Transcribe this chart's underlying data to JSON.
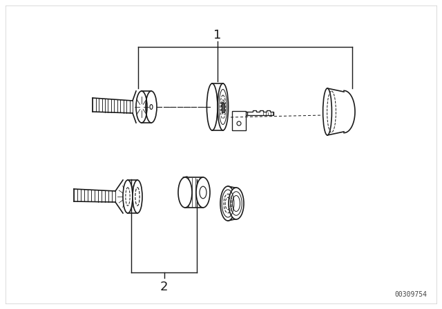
{
  "bg_color": "#ffffff",
  "part1_label": "1",
  "part2_label": "2",
  "watermark": "00309754",
  "line_color": "#1a1a1a",
  "line_width": 1.2,
  "border_color": "#cccccc"
}
